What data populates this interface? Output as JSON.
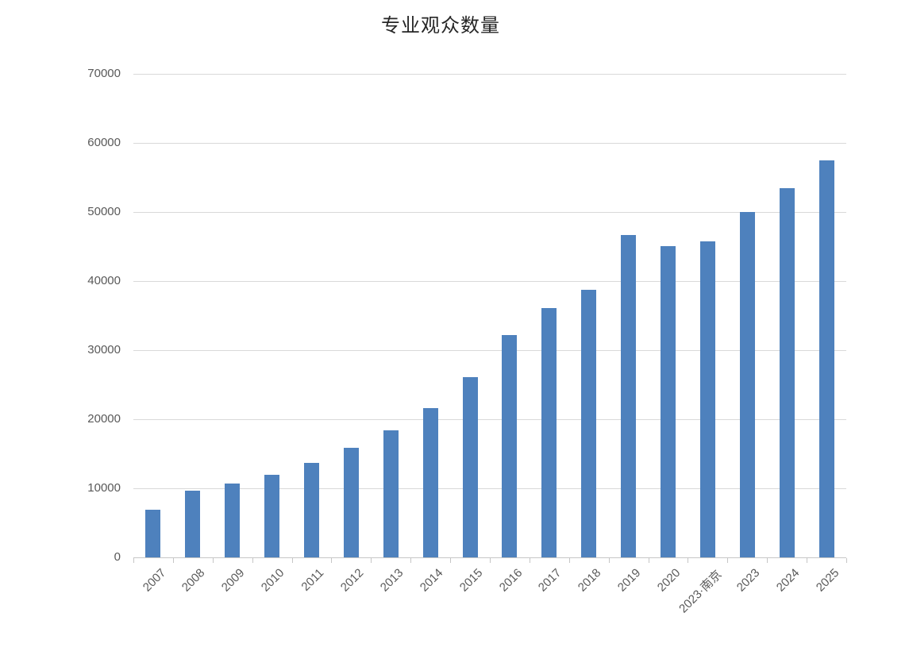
{
  "chart_data": {
    "type": "bar",
    "title": "专业观众数量",
    "categories": [
      "2007",
      "2008",
      "2009",
      "2010",
      "2011",
      "2012",
      "2013",
      "2014",
      "2015",
      "2016",
      "2017",
      "2018",
      "2019",
      "2020",
      "2023·南京",
      "2023",
      "2024",
      "2025"
    ],
    "values": [
      6900,
      9700,
      10700,
      12000,
      13700,
      15900,
      18400,
      21600,
      26100,
      32200,
      36100,
      38700,
      46700,
      45100,
      45800,
      50000,
      53500,
      57500
    ],
    "xlabel": "",
    "ylabel": "",
    "ylim": [
      0,
      70000
    ],
    "ytick_step": 10000,
    "ytick_labels": [
      "0",
      "10000",
      "20000",
      "30000",
      "40000",
      "50000",
      "60000",
      "70000"
    ],
    "grid": true,
    "legend_position": "none",
    "x_tick_label_rotation_deg": 45,
    "colors": {
      "bar": "#4e81bd",
      "gridline": "#d9d9d9",
      "axis": "#c6c6c6",
      "tick_label": "#595959",
      "title": "#262626",
      "background": "#ffffff"
    }
  }
}
